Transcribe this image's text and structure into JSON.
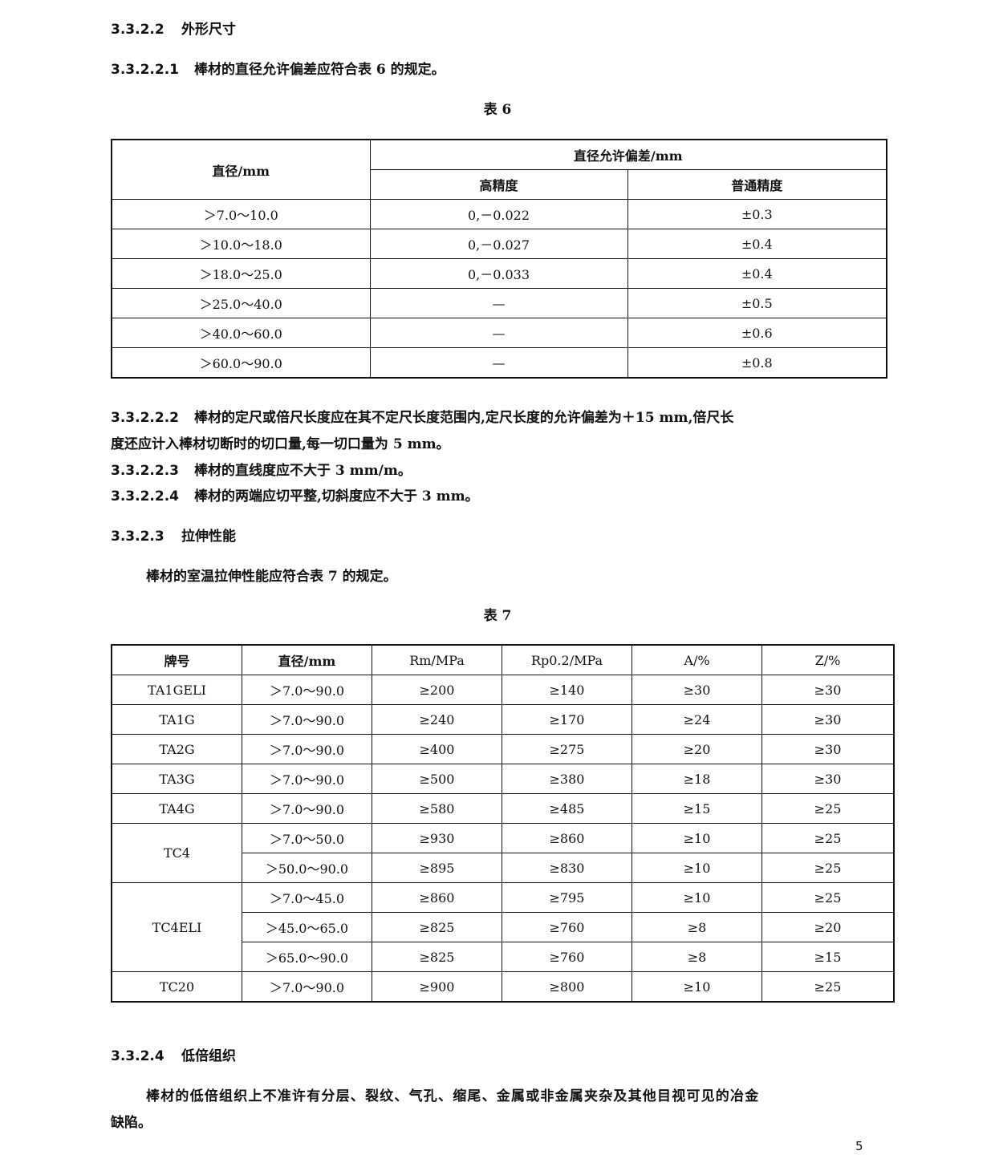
{
  "s1": {
    "num": "3.3.2.2",
    "text": "外形尺寸"
  },
  "s11": {
    "num": "3.3.2.2.1",
    "text": "棒材的直径允许偏差应符合表 6 的规定。"
  },
  "table6": {
    "caption": "表 6",
    "h_diam": "直径/mm",
    "h_tol": "直径允许偏差/mm",
    "h_high": "高精度",
    "h_normal": "普通精度",
    "rows": [
      [
        "＞7.0～10.0",
        "0,－0.022",
        "±0.3"
      ],
      [
        "＞10.0～18.0",
        "0,－0.027",
        "±0.4"
      ],
      [
        "＞18.0～25.0",
        "0,－0.033",
        "±0.4"
      ],
      [
        "＞25.0～40.0",
        "—",
        "±0.5"
      ],
      [
        "＞40.0～60.0",
        "—",
        "±0.6"
      ],
      [
        "＞60.0～90.0",
        "—",
        "±0.8"
      ]
    ]
  },
  "s12": {
    "num": "3.3.2.2.2",
    "text": "棒材的定尺或倍尺长度应在其不定尺长度范围内,定尺长度的允许偏差为＋15 mm,倍尺长",
    "text2": "度还应计入棒材切断时的切口量,每一切口量为 5 mm。"
  },
  "s13": {
    "num": "3.3.2.2.3",
    "text": "棒材的直线度应不大于 3 mm/m。"
  },
  "s14": {
    "num": "3.3.2.2.4",
    "text": "棒材的两端应切平整,切斜度应不大于 3 mm。"
  },
  "s2": {
    "num": "3.3.2.3",
    "text": "拉伸性能"
  },
  "s2p": "棒材的室温拉伸性能应符合表 7 的规定。",
  "table7": {
    "caption": "表 7",
    "headers": [
      "牌号",
      "直径/mm",
      "Rm/MPa",
      "Rp0.2/MPa",
      "A/%",
      "Z/%"
    ],
    "rows": [
      [
        "TA1GELI",
        "＞7.0～90.0",
        "≥200",
        "≥140",
        "≥30",
        "≥30"
      ],
      [
        "TA1G",
        "＞7.0～90.0",
        "≥240",
        "≥170",
        "≥24",
        "≥30"
      ],
      [
        "TA2G",
        "＞7.0～90.0",
        "≥400",
        "≥275",
        "≥20",
        "≥30"
      ],
      [
        "TA3G",
        "＞7.0～90.0",
        "≥500",
        "≥380",
        "≥18",
        "≥30"
      ],
      [
        "TA4G",
        "＞7.0～90.0",
        "≥580",
        "≥485",
        "≥15",
        "≥25"
      ],
      [
        "TC4",
        "＞7.0～50.0",
        "≥930",
        "≥860",
        "≥10",
        "≥25"
      ],
      [
        "",
        "＞50.0～90.0",
        "≥895",
        "≥830",
        "≥10",
        "≥25"
      ],
      [
        "TC4ELI",
        "＞7.0～45.0",
        "≥860",
        "≥795",
        "≥10",
        "≥25"
      ],
      [
        "",
        "＞45.0～65.0",
        "≥825",
        "≥760",
        "≥8",
        "≥20"
      ],
      [
        "",
        "＞65.0～90.0",
        "≥825",
        "≥760",
        "≥8",
        "≥15"
      ],
      [
        "TC20",
        "＞7.0～90.0",
        "≥900",
        "≥800",
        "≥10",
        "≥25"
      ]
    ]
  },
  "s3": {
    "num": "3.3.2.4",
    "text": "低倍组织"
  },
  "s3p": "棒材的低倍组织上不准许有分层、裂纹、气孔、缩尾、金属或非金属夹杂及其他目视可见的冶金",
  "s3p2": "缺陷。",
  "page_number": "5"
}
